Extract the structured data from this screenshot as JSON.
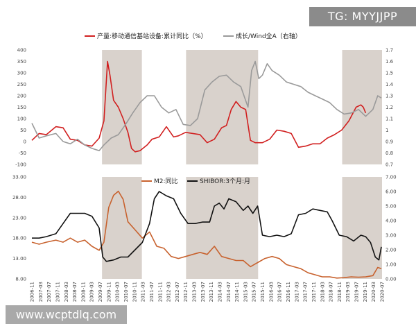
{
  "overlay": {
    "badge_text": "TG: MYYJJPP",
    "watermark_text": "www.wcptdlq.com"
  },
  "colors": {
    "red": "#d11f1f",
    "gray": "#9a9a9a",
    "orange": "#c8622e",
    "black": "#111111",
    "shade": "#d9d2cc"
  },
  "chart_data": [
    {
      "type": "line",
      "panel": "top",
      "legend": [
        {
          "name": "产量:移动通信基站设备:累计同比（%）",
          "color": "#d11f1f",
          "axis": "left"
        },
        {
          "name": "成长/Wind全A（右轴）",
          "color": "#9a9a9a",
          "axis": "right"
        }
      ],
      "ylim_left": [
        -100,
        400
      ],
      "yticks_left": [
        "400",
        "350",
        "300",
        "250",
        "200",
        "150",
        "100",
        "50",
        "0",
        "-50",
        "-100"
      ],
      "ylim_right": [
        0.7,
        1.7
      ],
      "yticks_right": [
        "1.7",
        "1.6",
        "1.5",
        "1.4",
        "1.3",
        "1.2",
        "1.1",
        "1",
        "0.9",
        "0.8",
        "0.7"
      ],
      "shaded_periods": [
        [
          2008.92,
          2010.58
        ],
        [
          2012.42,
          2015.42
        ],
        [
          2018.92,
          2020.58
        ]
      ],
      "series": [
        {
          "name": "产量:移动通信基站设备:累计同比（%）",
          "axis": "left",
          "x": [
            2006.0,
            2006.3,
            2006.6,
            2007.0,
            2007.3,
            2007.6,
            2007.9,
            2008.2,
            2008.5,
            2008.8,
            2009.0,
            2009.15,
            2009.25,
            2009.4,
            2009.6,
            2009.8,
            2010.0,
            2010.15,
            2010.3,
            2010.5,
            2010.8,
            2011.0,
            2011.3,
            2011.6,
            2011.9,
            2012.1,
            2012.4,
            2012.7,
            2013.0,
            2013.3,
            2013.6,
            2013.9,
            2014.1,
            2014.3,
            2014.5,
            2014.7,
            2014.9,
            2015.1,
            2015.3,
            2015.6,
            2015.9,
            2016.2,
            2016.5,
            2016.8,
            2017.1,
            2017.4,
            2017.7,
            2018.0,
            2018.3,
            2018.6,
            2018.9,
            2019.2,
            2019.5,
            2019.7,
            2019.8,
            2019.9
          ],
          "y": [
            5,
            35,
            30,
            65,
            60,
            10,
            5,
            -15,
            -20,
            15,
            90,
            350,
            290,
            180,
            150,
            100,
            40,
            -30,
            -45,
            -40,
            -15,
            10,
            20,
            65,
            20,
            25,
            40,
            35,
            30,
            -5,
            10,
            60,
            70,
            140,
            175,
            150,
            140,
            5,
            -5,
            -5,
            10,
            50,
            45,
            35,
            -25,
            -20,
            -10,
            -10,
            15,
            30,
            50,
            90,
            150,
            160,
            150,
            125
          ]
        },
        {
          "name": "成长/Wind全A（右轴）",
          "axis": "right",
          "x": [
            2006.0,
            2006.3,
            2006.6,
            2007.0,
            2007.3,
            2007.6,
            2007.9,
            2008.2,
            2008.5,
            2008.8,
            2009.0,
            2009.3,
            2009.6,
            2009.9,
            2010.2,
            2010.5,
            2010.8,
            2011.1,
            2011.4,
            2011.7,
            2012.0,
            2012.3,
            2012.6,
            2012.9,
            2013.2,
            2013.5,
            2013.8,
            2014.1,
            2014.4,
            2014.7,
            2015.0,
            2015.15,
            2015.3,
            2015.45,
            2015.6,
            2015.8,
            2016.0,
            2016.3,
            2016.6,
            2016.9,
            2017.2,
            2017.5,
            2017.8,
            2018.1,
            2018.4,
            2018.7,
            2019.0,
            2019.3,
            2019.6,
            2019.9,
            2020.2,
            2020.4,
            2020.55
          ],
          "y": [
            1.06,
            0.93,
            0.95,
            0.97,
            0.9,
            0.88,
            0.92,
            0.87,
            0.84,
            0.82,
            0.87,
            0.93,
            0.96,
            1.05,
            1.15,
            1.24,
            1.3,
            1.3,
            1.2,
            1.15,
            1.18,
            1.05,
            1.04,
            1.1,
            1.35,
            1.42,
            1.47,
            1.48,
            1.42,
            1.38,
            1.2,
            1.52,
            1.6,
            1.45,
            1.48,
            1.58,
            1.52,
            1.48,
            1.42,
            1.4,
            1.38,
            1.33,
            1.3,
            1.27,
            1.24,
            1.18,
            1.14,
            1.15,
            1.18,
            1.12,
            1.18,
            1.3,
            1.28
          ]
        }
      ]
    },
    {
      "type": "line",
      "panel": "bottom",
      "legend": [
        {
          "name": "M2:同比",
          "color": "#c8622e",
          "axis": "left"
        },
        {
          "name": "SHIBOR:3个月:月",
          "color": "#111111",
          "axis": "right"
        }
      ],
      "ylim_left": [
        8,
        33
      ],
      "yticks_left": [
        "33.00",
        "28.00",
        "23.00",
        "18.00",
        "13.00",
        "8.00"
      ],
      "ylim_right": [
        0,
        7
      ],
      "yticks_right": [
        "7.00",
        "6.00",
        "5.00",
        "4.00",
        "3.00",
        "2.00",
        "1.00",
        "0.00"
      ],
      "shaded_periods": [
        [
          2008.92,
          2010.58
        ],
        [
          2012.42,
          2015.42
        ],
        [
          2018.92,
          2020.58
        ]
      ],
      "x_tick_labels": [
        "2006-11",
        "2007-03",
        "2007-07",
        "2007-11",
        "2008-03",
        "2008-07",
        "2008-11",
        "2009-03",
        "2009-07",
        "2009-11",
        "2010-03",
        "2010-07",
        "2010-11",
        "2011-03",
        "2011-07",
        "2011-11",
        "2012-03",
        "2012-07",
        "2012-11",
        "2013-03",
        "2013-07",
        "2013-11",
        "2014-03",
        "2014-07",
        "2014-11",
        "2015-03",
        "2015-07",
        "2015-11",
        "2016-03",
        "2016-07",
        "2016-11",
        "2017-03",
        "2017-07",
        "2017-11",
        "2018-03",
        "2018-07",
        "2018-11",
        "2019-03",
        "2019-07",
        "2019-11",
        "2020-03",
        "2020-07"
      ],
      "series": [
        {
          "name": "M2:同比",
          "axis": "left",
          "x": [
            2006.0,
            2006.3,
            2006.6,
            2007.0,
            2007.3,
            2007.6,
            2007.9,
            2008.2,
            2008.5,
            2008.8,
            2009.0,
            2009.2,
            2009.4,
            2009.6,
            2009.8,
            2010.0,
            2010.3,
            2010.6,
            2010.9,
            2011.2,
            2011.5,
            2011.8,
            2012.1,
            2012.4,
            2012.7,
            2013.0,
            2013.3,
            2013.6,
            2013.9,
            2014.2,
            2014.5,
            2014.8,
            2015.1,
            2015.4,
            2015.7,
            2016.0,
            2016.3,
            2016.6,
            2016.9,
            2017.2,
            2017.5,
            2017.8,
            2018.1,
            2018.4,
            2018.7,
            2019.0,
            2019.3,
            2019.6,
            2019.9,
            2020.2,
            2020.4,
            2020.55
          ],
          "y": [
            17,
            16.5,
            17,
            17.5,
            17,
            18,
            17,
            17.5,
            16,
            15,
            17,
            25.5,
            28.5,
            29.5,
            27.5,
            22,
            20,
            18,
            19.5,
            16,
            15.5,
            13.5,
            13,
            13.5,
            14,
            14.5,
            14,
            16,
            13.5,
            13,
            12.5,
            12.5,
            11,
            12,
            13,
            13.5,
            13,
            11.5,
            11,
            10.5,
            9.5,
            9,
            8.5,
            8.5,
            8.2,
            8.3,
            8.5,
            8.4,
            8.5,
            8.8,
            10.8,
            10.5
          ]
        },
        {
          "name": "SHIBOR:3个月:月",
          "axis": "right",
          "x": [
            2006.0,
            2006.3,
            2006.6,
            2007.0,
            2007.3,
            2007.6,
            2007.9,
            2008.2,
            2008.5,
            2008.8,
            2008.95,
            2009.1,
            2009.4,
            2009.7,
            2010.0,
            2010.3,
            2010.6,
            2010.9,
            2011.1,
            2011.3,
            2011.6,
            2011.9,
            2012.2,
            2012.5,
            2012.8,
            2013.1,
            2013.4,
            2013.6,
            2013.8,
            2014.0,
            2014.2,
            2014.5,
            2014.8,
            2015.0,
            2015.2,
            2015.4,
            2015.6,
            2015.9,
            2016.2,
            2016.5,
            2016.8,
            2017.1,
            2017.4,
            2017.7,
            2018.0,
            2018.3,
            2018.5,
            2018.8,
            2019.1,
            2019.4,
            2019.7,
            2019.9,
            2020.1,
            2020.3,
            2020.45,
            2020.55
          ],
          "y": [
            2.8,
            2.8,
            2.9,
            3.1,
            3.8,
            4.5,
            4.5,
            4.5,
            4.3,
            3.5,
            1.5,
            1.2,
            1.3,
            1.5,
            1.5,
            2.0,
            2.5,
            3.8,
            5.5,
            6.0,
            5.7,
            5.5,
            4.5,
            3.8,
            3.8,
            3.9,
            3.9,
            5.0,
            5.2,
            4.8,
            5.5,
            5.3,
            4.7,
            5.0,
            4.5,
            5.0,
            3.0,
            2.9,
            3.0,
            2.9,
            3.1,
            4.4,
            4.5,
            4.8,
            4.7,
            4.6,
            4.0,
            3.0,
            2.9,
            2.6,
            3.0,
            2.9,
            2.5,
            1.5,
            1.3,
            2.2
          ]
        }
      ]
    }
  ]
}
